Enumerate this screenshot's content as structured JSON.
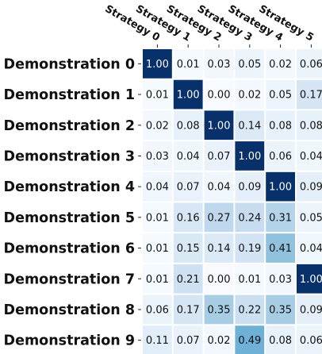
{
  "chart_data": {
    "type": "heatmap",
    "x_categories": [
      "Strategy 0",
      "Strategy 1",
      "Strategy 2",
      "Strategy 3",
      "Strategy 4",
      "Strategy 5"
    ],
    "y_categories": [
      "Demonstration 0",
      "Demonstration 1",
      "Demonstration 2",
      "Demonstration 3",
      "Demonstration 4",
      "Demonstration 5",
      "Demonstration 6",
      "Demonstration 7",
      "Demonstration 8",
      "Demonstration 9"
    ],
    "values": [
      [
        1.0,
        0.01,
        0.03,
        0.05,
        0.02,
        0.06
      ],
      [
        0.01,
        1.0,
        0.0,
        0.02,
        0.05,
        0.17
      ],
      [
        0.02,
        0.08,
        1.0,
        0.14,
        0.08,
        0.08
      ],
      [
        0.03,
        0.04,
        0.07,
        1.0,
        0.06,
        0.04
      ],
      [
        0.04,
        0.07,
        0.04,
        0.09,
        1.0,
        0.09
      ],
      [
        0.01,
        0.16,
        0.27,
        0.24,
        0.31,
        0.05
      ],
      [
        0.01,
        0.15,
        0.14,
        0.19,
        0.41,
        0.04
      ],
      [
        0.01,
        0.21,
        0.0,
        0.01,
        0.03,
        1.0
      ],
      [
        0.06,
        0.17,
        0.35,
        0.22,
        0.35,
        0.09
      ],
      [
        0.11,
        0.07,
        0.02,
        0.49,
        0.08,
        0.06
      ]
    ],
    "value_format": "0.00",
    "colormap": "Blues",
    "vmin": 0,
    "vmax": 1,
    "x_labels_position": "top",
    "x_label_rotation": 30,
    "cell_gap_color": "#ffffff"
  }
}
